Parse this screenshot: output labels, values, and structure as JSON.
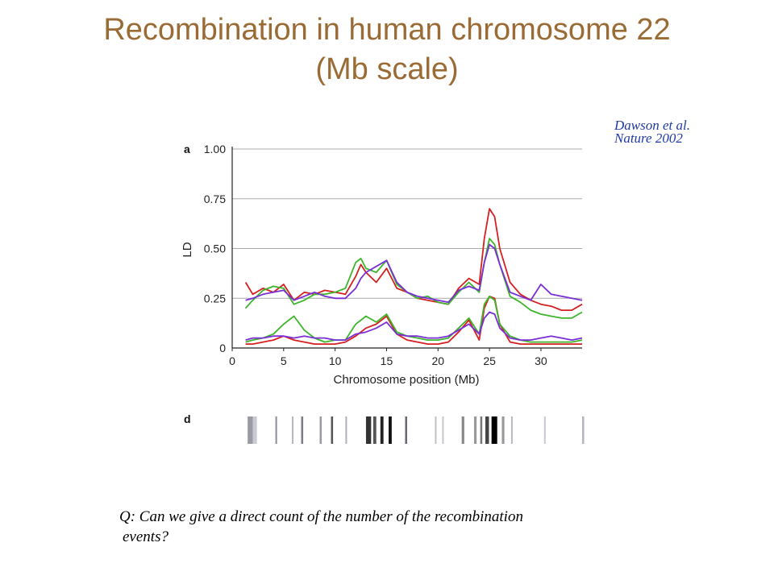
{
  "title_line1": "Recombination in human chromosome 22",
  "title_line2": "(Mb scale)",
  "citation_line1": "Dawson et al.",
  "citation_line2": "Nature 2002",
  "question_line1": "Q: Can we give a direct count of the number of the recombination",
  "question_line2": "events?",
  "panel_a": "a",
  "panel_d": "d",
  "colors": {
    "red": "#d42020",
    "green": "#3db52b",
    "purple": "#7a2fd6",
    "title": "#9a6b34",
    "citation": "#1f3aa8"
  },
  "chart_data": {
    "type": "line",
    "xlabel": "Chromosome position (Mb)",
    "ylabel": "LD",
    "xlim": [
      0,
      34
    ],
    "ylim": [
      0,
      1
    ],
    "xticks": [
      0,
      5,
      10,
      15,
      20,
      25,
      30
    ],
    "yticks": [
      0,
      0.25,
      0.5,
      0.75,
      1.0
    ],
    "ytick_labels": [
      "0",
      "0.25",
      "0.50",
      "0.75",
      "1.00"
    ],
    "grid": true,
    "series": [
      {
        "color": "#d42020",
        "x": [
          1.3,
          2,
          3,
          4,
          5,
          6,
          7,
          8,
          9,
          10,
          11,
          12,
          12.5,
          13,
          14,
          15,
          16,
          17,
          18,
          19,
          20,
          21,
          22,
          23,
          24,
          24.5,
          25,
          25.5,
          26,
          27,
          28,
          29,
          30,
          31,
          32,
          33,
          34
        ],
        "y": [
          0.33,
          0.27,
          0.3,
          0.28,
          0.32,
          0.24,
          0.28,
          0.27,
          0.29,
          0.28,
          0.27,
          0.36,
          0.42,
          0.38,
          0.33,
          0.4,
          0.3,
          0.28,
          0.25,
          0.24,
          0.23,
          0.22,
          0.3,
          0.35,
          0.32,
          0.55,
          0.7,
          0.66,
          0.5,
          0.33,
          0.27,
          0.24,
          0.22,
          0.21,
          0.19,
          0.19,
          0.22
        ]
      },
      {
        "color": "#3db52b",
        "x": [
          1.3,
          2,
          3,
          4,
          5,
          6,
          7,
          8,
          9,
          10,
          11,
          12,
          12.5,
          13,
          14,
          15,
          16,
          17,
          18,
          19,
          20,
          21,
          22,
          23,
          24,
          24.5,
          25,
          25.5,
          26,
          27,
          28,
          29,
          30,
          31,
          32,
          33,
          34
        ],
        "y": [
          0.2,
          0.24,
          0.29,
          0.31,
          0.3,
          0.22,
          0.24,
          0.27,
          0.27,
          0.28,
          0.3,
          0.43,
          0.45,
          0.4,
          0.38,
          0.44,
          0.32,
          0.28,
          0.25,
          0.26,
          0.23,
          0.22,
          0.28,
          0.33,
          0.28,
          0.43,
          0.55,
          0.52,
          0.42,
          0.26,
          0.23,
          0.19,
          0.17,
          0.16,
          0.15,
          0.15,
          0.18
        ]
      },
      {
        "color": "#7a2fd6",
        "x": [
          1.3,
          2,
          3,
          4,
          5,
          6,
          7,
          8,
          9,
          10,
          11,
          12,
          12.5,
          13,
          14,
          15,
          16,
          17,
          18,
          19,
          20,
          21,
          22,
          23,
          24,
          24.5,
          25,
          25.5,
          26,
          27,
          28,
          29,
          30,
          31,
          32,
          33,
          34
        ],
        "y": [
          0.24,
          0.25,
          0.27,
          0.28,
          0.29,
          0.24,
          0.26,
          0.28,
          0.26,
          0.25,
          0.25,
          0.3,
          0.35,
          0.38,
          0.41,
          0.44,
          0.33,
          0.28,
          0.26,
          0.25,
          0.24,
          0.23,
          0.29,
          0.31,
          0.29,
          0.43,
          0.52,
          0.5,
          0.42,
          0.28,
          0.26,
          0.24,
          0.32,
          0.27,
          0.26,
          0.25,
          0.24
        ]
      },
      {
        "color": "#d42020",
        "x": [
          1.3,
          2,
          3,
          4,
          5,
          6,
          7,
          8,
          9,
          10,
          11,
          12,
          13,
          14,
          15,
          16,
          17,
          18,
          19,
          20,
          21,
          22,
          23,
          24,
          24.5,
          25,
          25.5,
          26,
          27,
          28,
          29,
          30,
          31,
          32,
          33,
          34
        ],
        "y": [
          0.02,
          0.02,
          0.03,
          0.04,
          0.06,
          0.04,
          0.03,
          0.02,
          0.02,
          0.02,
          0.03,
          0.06,
          0.1,
          0.12,
          0.16,
          0.07,
          0.04,
          0.03,
          0.02,
          0.02,
          0.03,
          0.08,
          0.14,
          0.04,
          0.2,
          0.26,
          0.25,
          0.12,
          0.03,
          0.02,
          0.02,
          0.02,
          0.02,
          0.02,
          0.02,
          0.02
        ]
      },
      {
        "color": "#3db52b",
        "x": [
          1.3,
          2,
          3,
          4,
          5,
          6,
          7,
          8,
          9,
          10,
          11,
          12,
          13,
          14,
          15,
          16,
          17,
          18,
          19,
          20,
          21,
          22,
          23,
          24,
          24.5,
          25,
          25.5,
          26,
          27,
          28,
          29,
          30,
          31,
          32,
          33,
          34
        ],
        "y": [
          0.03,
          0.04,
          0.05,
          0.07,
          0.12,
          0.16,
          0.09,
          0.05,
          0.03,
          0.04,
          0.04,
          0.12,
          0.16,
          0.13,
          0.17,
          0.08,
          0.06,
          0.05,
          0.04,
          0.04,
          0.05,
          0.1,
          0.15,
          0.07,
          0.22,
          0.26,
          0.24,
          0.12,
          0.06,
          0.04,
          0.03,
          0.03,
          0.03,
          0.03,
          0.03,
          0.04
        ]
      },
      {
        "color": "#7a2fd6",
        "x": [
          1.3,
          2,
          3,
          4,
          5,
          6,
          7,
          8,
          9,
          10,
          11,
          12,
          13,
          14,
          15,
          16,
          17,
          18,
          19,
          20,
          21,
          22,
          23,
          24,
          24.5,
          25,
          25.5,
          26,
          27,
          28,
          29,
          30,
          31,
          32,
          33,
          34
        ],
        "y": [
          0.04,
          0.05,
          0.05,
          0.06,
          0.06,
          0.05,
          0.06,
          0.05,
          0.05,
          0.04,
          0.04,
          0.07,
          0.08,
          0.1,
          0.13,
          0.07,
          0.06,
          0.06,
          0.05,
          0.05,
          0.06,
          0.09,
          0.12,
          0.07,
          0.15,
          0.18,
          0.17,
          0.1,
          0.05,
          0.04,
          0.04,
          0.05,
          0.06,
          0.05,
          0.04,
          0.05
        ]
      }
    ]
  },
  "barcode": [
    {
      "pos": 1.5,
      "w": 0.5,
      "shade": "#9a9aa2"
    },
    {
      "pos": 2.0,
      "w": 0.4,
      "shade": "#c9c9d4"
    },
    {
      "pos": 4.2,
      "w": 0.15,
      "shade": "#8c8c96"
    },
    {
      "pos": 5.8,
      "w": 0.15,
      "shade": "#b5b5c0"
    },
    {
      "pos": 6.7,
      "w": 0.2,
      "shade": "#7d7d88"
    },
    {
      "pos": 8.5,
      "w": 0.2,
      "shade": "#9a9aa2"
    },
    {
      "pos": 9.6,
      "w": 0.2,
      "shade": "#555"
    },
    {
      "pos": 11.0,
      "w": 0.15,
      "shade": "#b0b0b8"
    },
    {
      "pos": 13.0,
      "w": 0.5,
      "shade": "#333"
    },
    {
      "pos": 13.7,
      "w": 0.3,
      "shade": "#555"
    },
    {
      "pos": 14.4,
      "w": 0.3,
      "shade": "#222"
    },
    {
      "pos": 15.2,
      "w": 0.3,
      "shade": "#111"
    },
    {
      "pos": 16.8,
      "w": 0.2,
      "shade": "#6a6a72"
    },
    {
      "pos": 19.7,
      "w": 0.15,
      "shade": "#c0c0c8"
    },
    {
      "pos": 20.4,
      "w": 0.15,
      "shade": "#c7c7cf"
    },
    {
      "pos": 22.3,
      "w": 0.25,
      "shade": "#888"
    },
    {
      "pos": 23.5,
      "w": 0.25,
      "shade": "#999"
    },
    {
      "pos": 24.1,
      "w": 0.2,
      "shade": "#777"
    },
    {
      "pos": 24.6,
      "w": 0.35,
      "shade": "#444"
    },
    {
      "pos": 25.2,
      "w": 0.55,
      "shade": "#000"
    },
    {
      "pos": 26.2,
      "w": 0.25,
      "shade": "#999"
    },
    {
      "pos": 27.1,
      "w": 0.15,
      "shade": "#b8b8c0"
    },
    {
      "pos": 30.3,
      "w": 0.15,
      "shade": "#c8c8d0"
    },
    {
      "pos": 34.0,
      "w": 0.2,
      "shade": "#b5b5c0"
    }
  ]
}
